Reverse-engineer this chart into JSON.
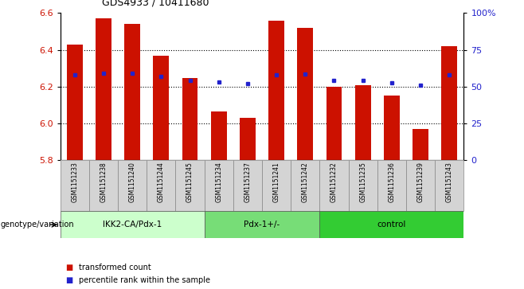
{
  "title": "GDS4933 / 10411680",
  "samples": [
    "GSM1151233",
    "GSM1151238",
    "GSM1151240",
    "GSM1151244",
    "GSM1151245",
    "GSM1151234",
    "GSM1151237",
    "GSM1151241",
    "GSM1151242",
    "GSM1151232",
    "GSM1151235",
    "GSM1151236",
    "GSM1151239",
    "GSM1151243"
  ],
  "bar_values": [
    6.43,
    6.57,
    6.54,
    6.37,
    6.245,
    6.065,
    6.03,
    6.56,
    6.52,
    6.2,
    6.21,
    6.15,
    5.97,
    6.42
  ],
  "blue_values": [
    6.265,
    6.275,
    6.275,
    6.255,
    6.235,
    6.225,
    6.215,
    6.265,
    6.27,
    6.235,
    6.235,
    6.22,
    6.21,
    6.265
  ],
  "bar_bottom": 5.8,
  "ylim_left": [
    5.8,
    6.6
  ],
  "ylim_right": [
    0,
    100
  ],
  "yticks_left": [
    5.8,
    6.0,
    6.2,
    6.4,
    6.6
  ],
  "yticks_right": [
    0,
    25,
    50,
    75,
    100
  ],
  "ytick_right_labels": [
    "0",
    "25",
    "50",
    "75",
    "100%"
  ],
  "bar_color": "#cc1100",
  "blue_color": "#2222cc",
  "groups": [
    {
      "label": "IKK2-CA/Pdx-1",
      "start": 0,
      "end": 5,
      "color": "#ccffcc"
    },
    {
      "label": "Pdx-1+/-",
      "start": 5,
      "end": 9,
      "color": "#77dd77"
    },
    {
      "label": "control",
      "start": 9,
      "end": 14,
      "color": "#33cc33"
    }
  ],
  "legend_red": "transformed count",
  "legend_blue": "percentile rank within the sample",
  "genotype_label": "genotype/variation",
  "bg_color": "#ffffff",
  "tick_label_color_left": "#cc1100",
  "tick_label_color_right": "#2222cc",
  "bar_width": 0.55,
  "sample_box_color": "#d4d4d4",
  "sample_box_edge": "#888888"
}
